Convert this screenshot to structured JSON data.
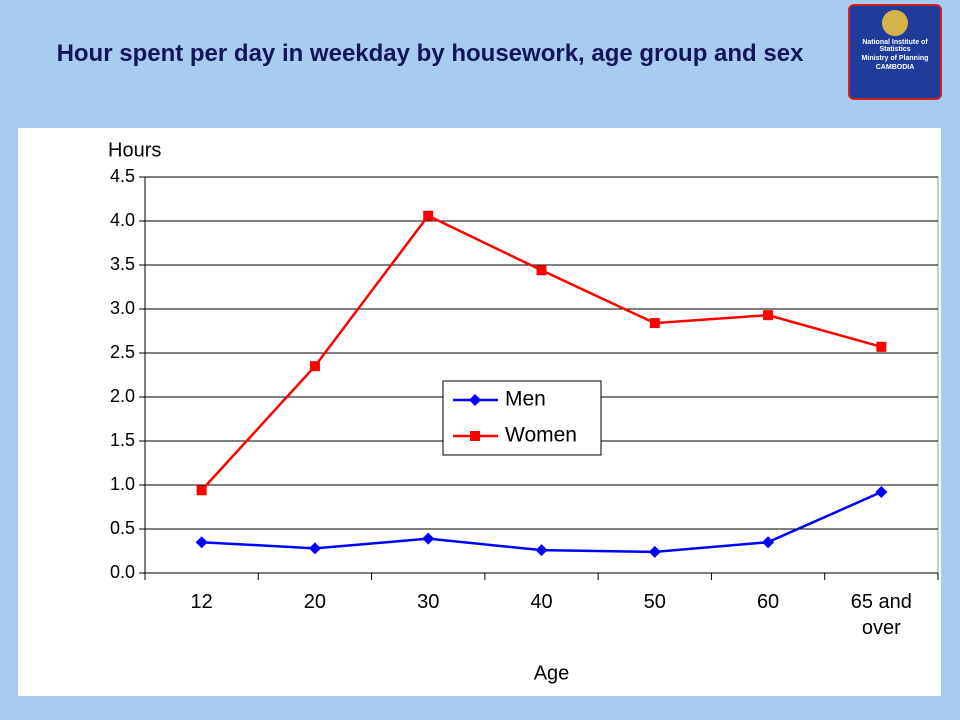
{
  "header": {
    "title": "Hour spent per day in weekday by housework, age group and sex"
  },
  "logo": {
    "line1": "National Institute of Statistics",
    "line2": "Ministry of Planning",
    "line3": "CAMBODIA"
  },
  "chart_data": {
    "type": "line",
    "ylabel": "Hours",
    "xlabel": "Age",
    "categories": [
      "12",
      "20",
      "30",
      "40",
      "50",
      "60",
      "65 and over"
    ],
    "series": [
      {
        "name": "Men",
        "color": "#0000ff",
        "marker": "diamond",
        "values": [
          0.35,
          0.28,
          0.39,
          0.26,
          0.24,
          0.35,
          0.92
        ]
      },
      {
        "name": "Women",
        "color": "#ff0000",
        "marker": "square",
        "values": [
          0.94,
          2.35,
          4.06,
          3.44,
          2.84,
          2.93,
          2.57
        ]
      }
    ],
    "ylim": [
      0,
      4.5
    ],
    "yticks": [
      {
        "value": 0,
        "label": "0.0"
      },
      0.5,
      {
        "value": 1,
        "label": "1.0"
      },
      1.5,
      {
        "value": 2,
        "label": "2.0"
      },
      2.5,
      {
        "value": 3,
        "label": "3.0"
      },
      3.5,
      {
        "value": 4,
        "label": "4.0"
      },
      4.5
    ],
    "grid": true,
    "legend": "center"
  }
}
